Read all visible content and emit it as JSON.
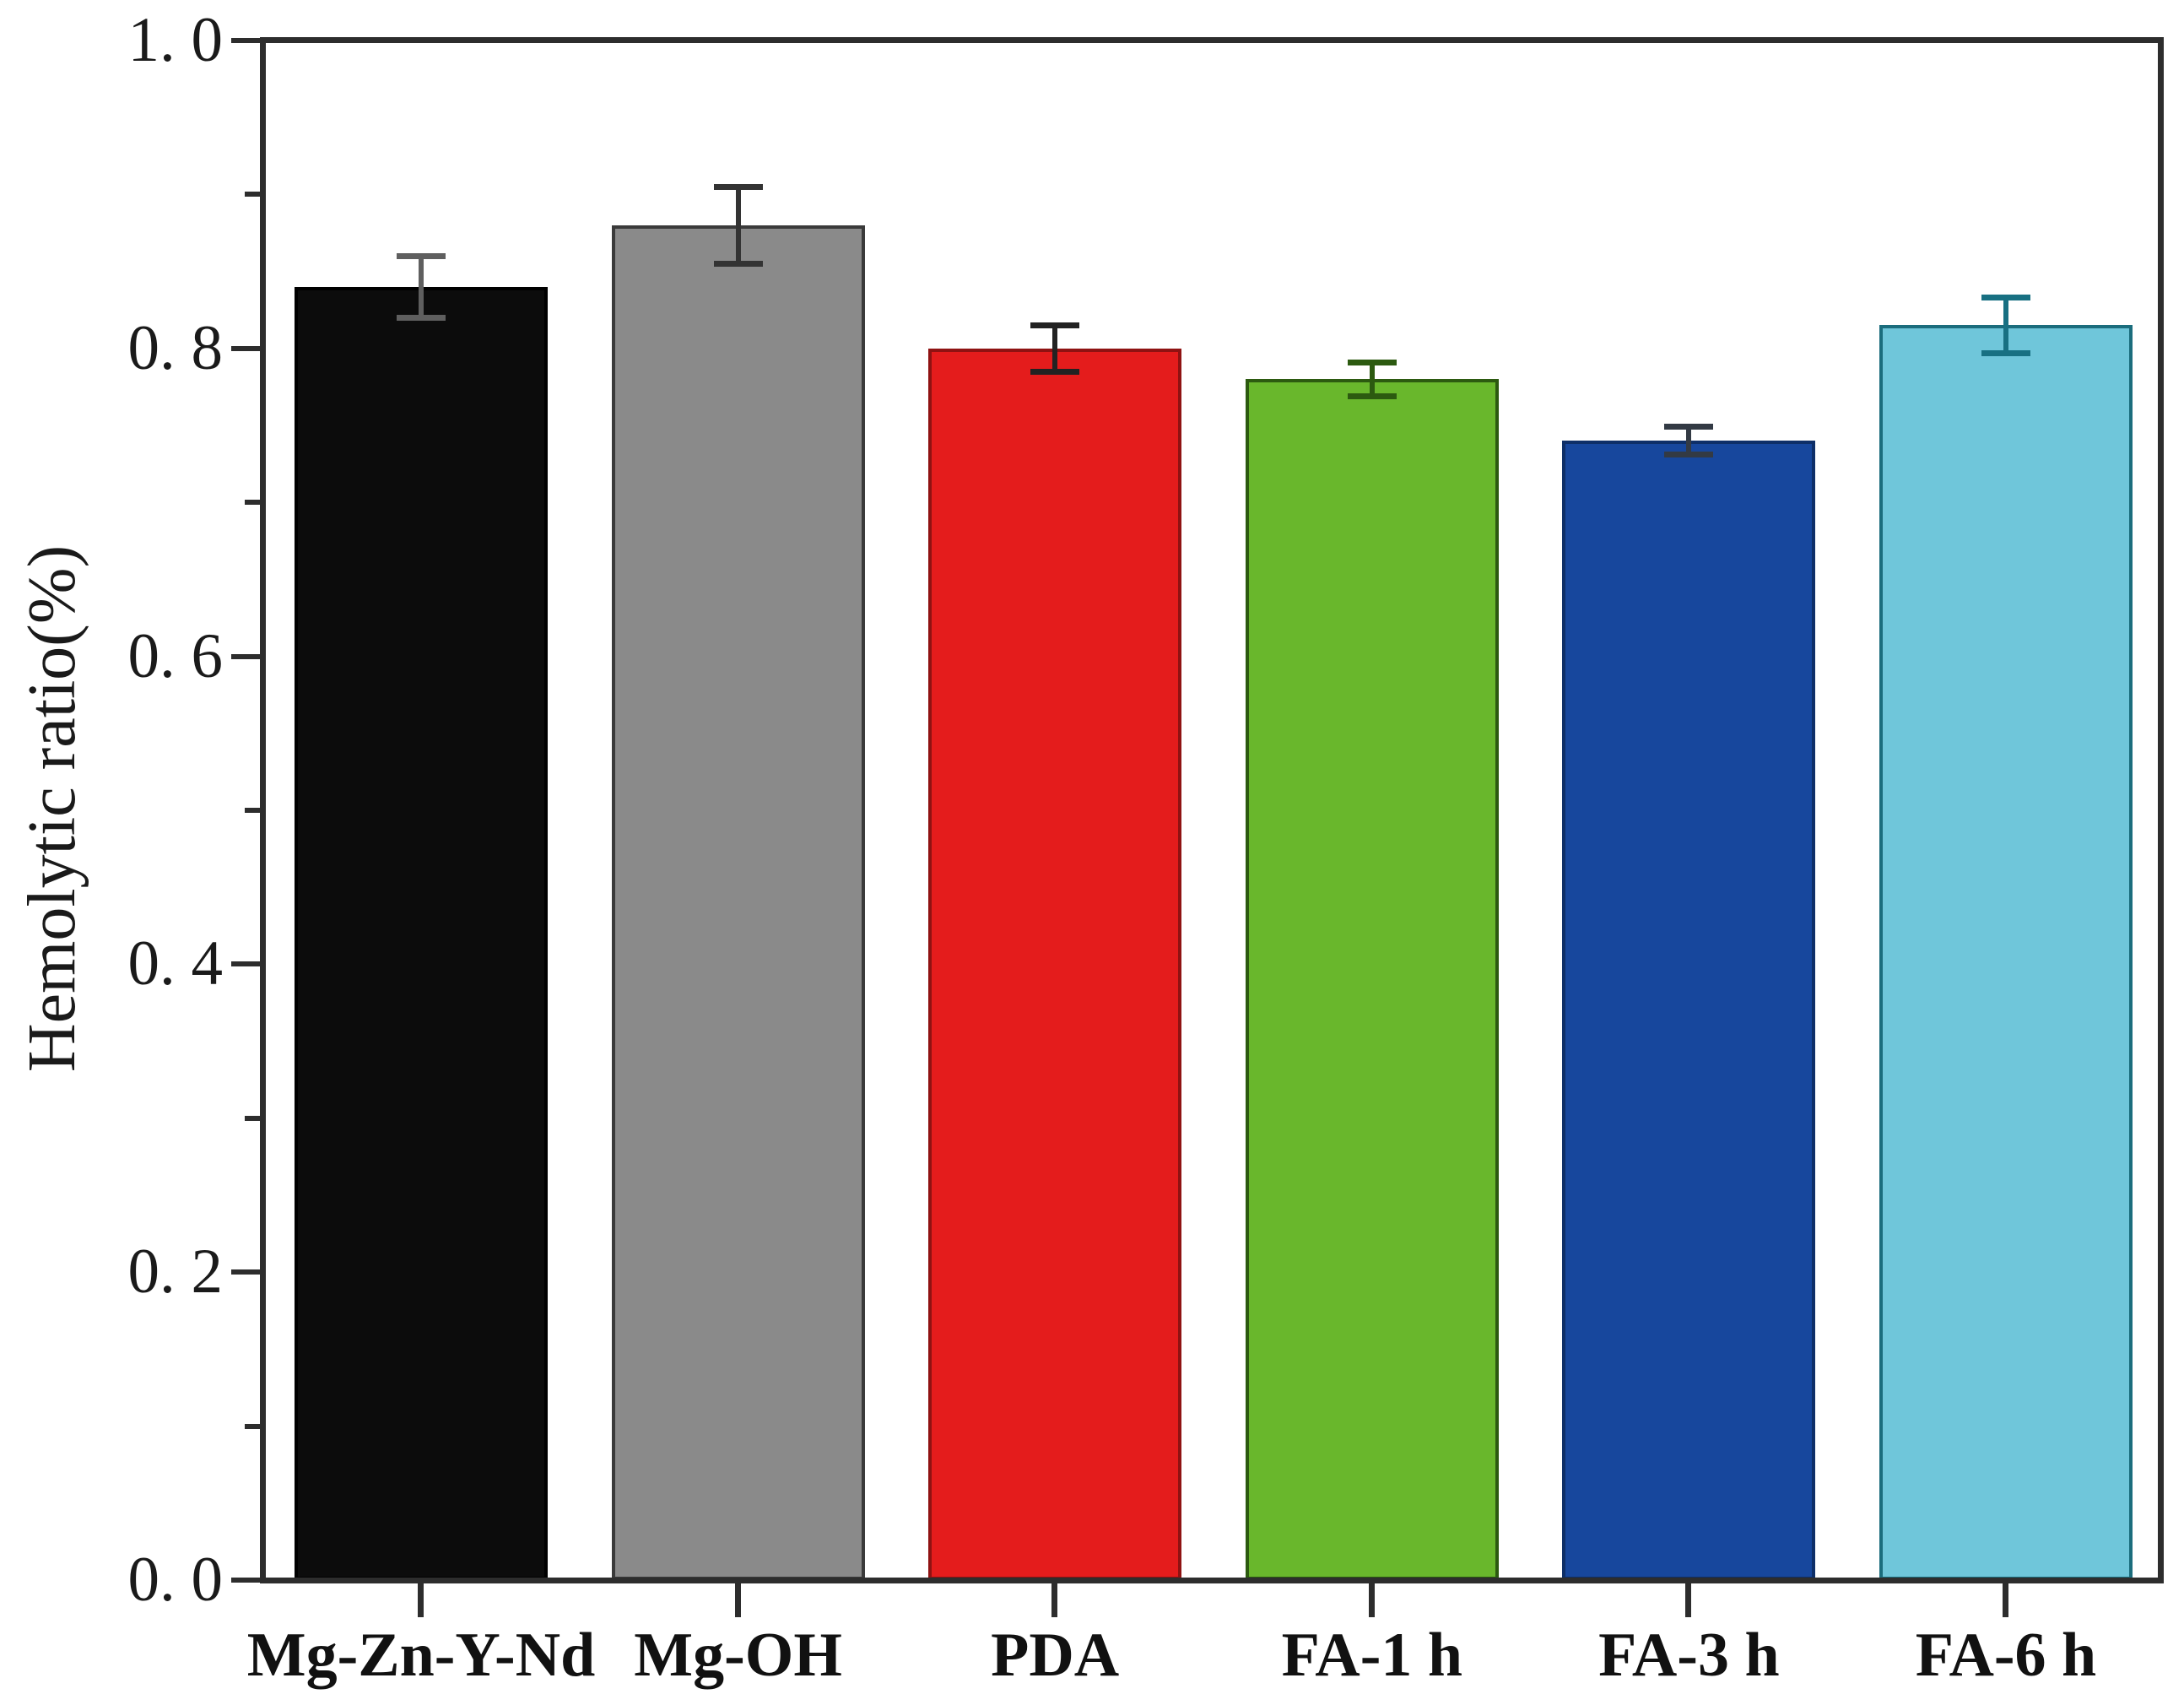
{
  "figure": {
    "background": "#ffffff",
    "axis_color": "#2d2d2d"
  },
  "chart_data": {
    "type": "bar",
    "title": "",
    "xlabel": "",
    "ylabel": "Hemolytic ratio(%)",
    "categories": [
      "Mg-Zn-Y-Nd",
      "Mg-OH",
      "PDA",
      "FA-1 h",
      "FA-3 h",
      "FA-6 h"
    ],
    "values": [
      0.84,
      0.88,
      0.8,
      0.78,
      0.74,
      0.815
    ],
    "errors": [
      0.02,
      0.025,
      0.015,
      0.011,
      0.009,
      0.018
    ],
    "bar_colors": [
      "#0c0c0c",
      "#8a8a8a",
      "#e41c1c",
      "#69b72c",
      "#17479d",
      "#6fc6da"
    ],
    "bar_edge_colors": [
      "#000000",
      "#3a3a3a",
      "#8f1212",
      "#2c5a10",
      "#0e2f68",
      "#1b6d7d"
    ],
    "error_colors": [
      "#5f5f5f",
      "#333333",
      "#222222",
      "#2c5a10",
      "#333a44",
      "#187082"
    ],
    "ylim": [
      0,
      1
    ],
    "ytick_labels": [
      "0. 0",
      "0. 2",
      "0. 4",
      "0. 6",
      "0. 8",
      "1. 0"
    ],
    "ytick_step": 0.2,
    "minor_tick_step": 0.1,
    "grid": false,
    "legend": false,
    "error_bar_style": "caps-both-ends"
  }
}
